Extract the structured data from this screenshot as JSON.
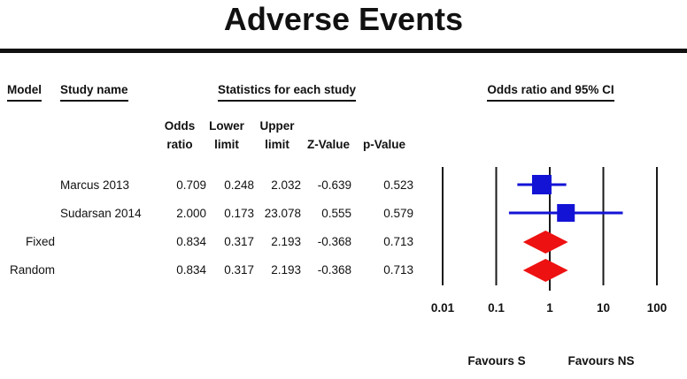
{
  "title": "Adverse Events",
  "table": {
    "headers": {
      "model": "Model",
      "study": "Study name",
      "stats": "Statistics for each study"
    },
    "subheaders": [
      {
        "line1": "Odds",
        "line2": "ratio"
      },
      {
        "line1": "Lower",
        "line2": "limit"
      },
      {
        "line1": "Upper",
        "line2": "limit"
      },
      {
        "line1": "",
        "line2": "Z-Value"
      },
      {
        "line1": "",
        "line2": "p-Value"
      }
    ],
    "rows": [
      {
        "model": "",
        "study": "Marcus 2013",
        "odds_ratio": "0.709",
        "lower_limit": "0.248",
        "upper_limit": "2.032",
        "z_value": "-0.639",
        "p_value": "0.523"
      },
      {
        "model": "",
        "study": "Sudarsan 2014",
        "odds_ratio": "2.000",
        "lower_limit": "0.173",
        "upper_limit": "23.078",
        "z_value": "0.555",
        "p_value": "0.579"
      },
      {
        "model": "Fixed",
        "study": "",
        "odds_ratio": "0.834",
        "lower_limit": "0.317",
        "upper_limit": "2.193",
        "z_value": "-0.368",
        "p_value": "0.713"
      },
      {
        "model": "Random",
        "study": "",
        "odds_ratio": "0.834",
        "lower_limit": "0.317",
        "upper_limit": "2.193",
        "z_value": "-0.368",
        "p_value": "0.713"
      }
    ]
  },
  "chart_data": {
    "type": "forest",
    "title": "Adverse Events",
    "plot_header": "Odds ratio and 95% CI",
    "x_axis": {
      "scale": "log10",
      "min": 0.01,
      "max": 100,
      "ticks": [
        0.01,
        0.1,
        1,
        10,
        100
      ]
    },
    "favours_left": "Favours S",
    "favours_right": "Favours NS",
    "points": [
      {
        "label": "Marcus 2013",
        "type": "study",
        "odds_ratio": 0.709,
        "lower": 0.248,
        "upper": 2.032,
        "marker_size": 22
      },
      {
        "label": "Sudarsan 2014",
        "type": "study",
        "odds_ratio": 2.0,
        "lower": 0.173,
        "upper": 23.078,
        "marker_size": 20
      },
      {
        "label": "Fixed",
        "type": "summary",
        "odds_ratio": 0.834,
        "lower": 0.317,
        "upper": 2.193
      },
      {
        "label": "Random",
        "type": "summary",
        "odds_ratio": 0.834,
        "lower": 0.317,
        "upper": 2.193
      }
    ],
    "colors": {
      "study_marker": "#1313d6",
      "summary_marker": "#ee1111",
      "axis_line": "#1a1a1a"
    }
  }
}
